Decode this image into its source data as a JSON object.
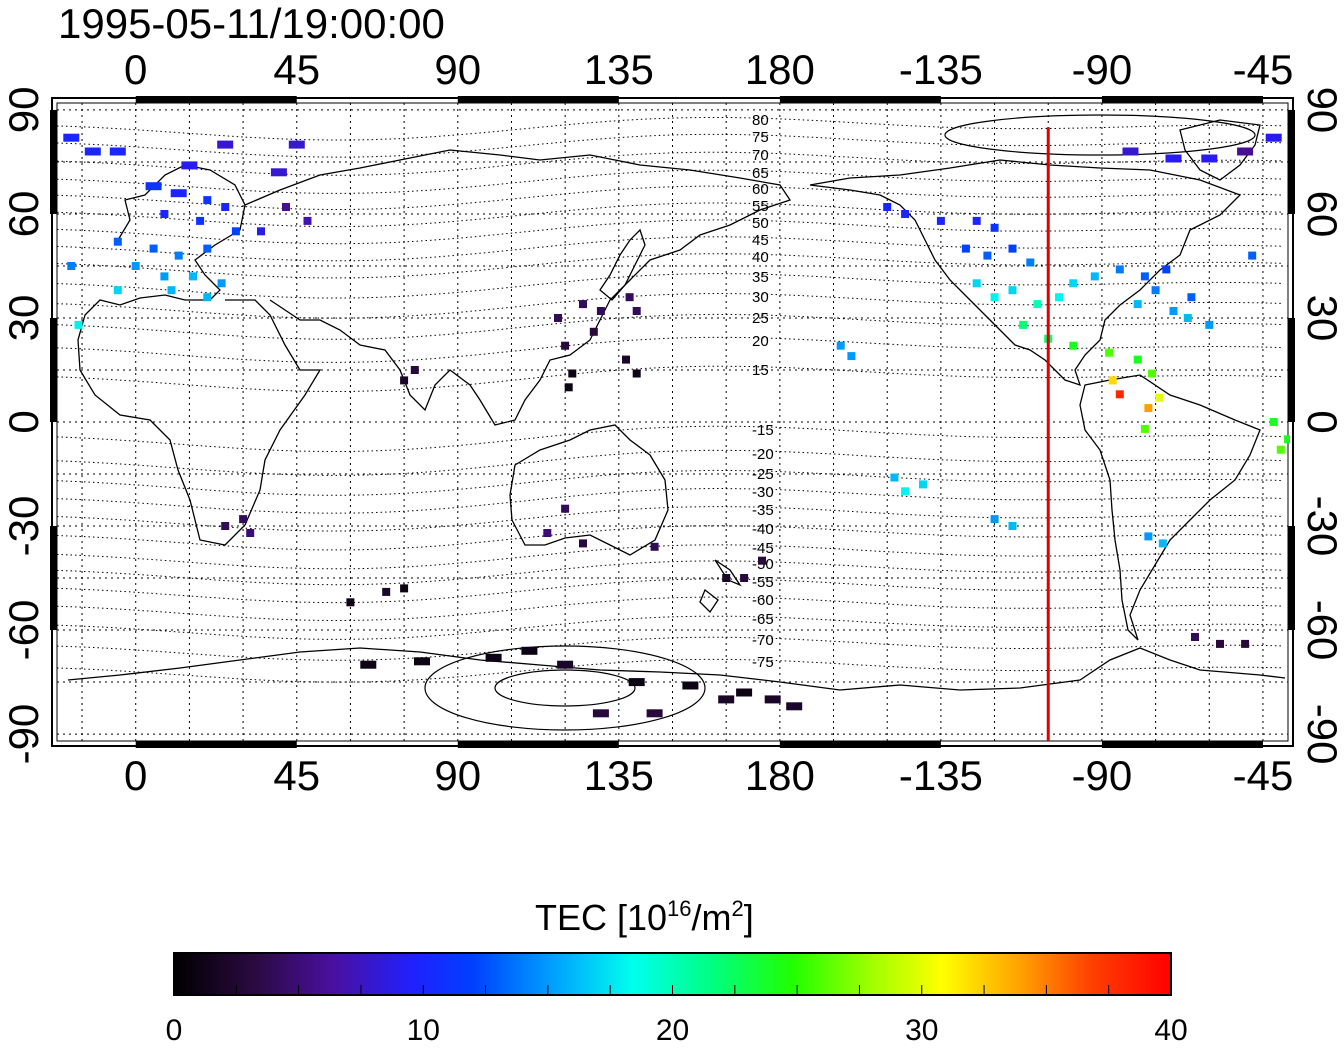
{
  "title": "1995-05-11/19:00:00",
  "map": {
    "lon_ticks": [
      {
        "lon": 0,
        "label": "0"
      },
      {
        "lon": 45,
        "label": "45"
      },
      {
        "lon": 90,
        "label": "90"
      },
      {
        "lon": 135,
        "label": "135"
      },
      {
        "lon": 180,
        "label": "180"
      },
      {
        "lon": 225,
        "label": "-135"
      },
      {
        "lon": 270,
        "label": "-90"
      },
      {
        "lon": 315,
        "label": "-45"
      }
    ],
    "lat_ticks": [
      {
        "lat": 90,
        "label": "90"
      },
      {
        "lat": 60,
        "label": "60"
      },
      {
        "lat": 30,
        "label": "30"
      },
      {
        "lat": 0,
        "label": "0"
      },
      {
        "lat": -30,
        "label": "-30"
      },
      {
        "lat": -60,
        "label": "-60"
      },
      {
        "lat": -90,
        "label": "-90"
      }
    ],
    "lon_range": [
      -22,
      322
    ],
    "lat_range": [
      -92,
      92
    ],
    "grid": true,
    "terminator_lon": 255,
    "terminator_color": "#e00000",
    "magnetic_lat_labels": [
      "80",
      "75",
      "70",
      "65",
      "60",
      "55",
      "50",
      "45",
      "40",
      "35",
      "30",
      "25",
      "20",
      "15",
      "-15",
      "-20",
      "-25",
      "-30",
      "-35",
      "-40",
      "-45",
      "-50",
      "-55",
      "-60",
      "-65",
      "-70",
      "-75"
    ]
  },
  "colorbar": {
    "title_main": "TEC  [10",
    "title_sup": "16",
    "title_mid": "/m",
    "title_sup2": "2",
    "title_end": "]",
    "ticks": [
      "0",
      "10",
      "20",
      "30",
      "40"
    ],
    "min": 0,
    "max": 40
  },
  "chart_data": {
    "type": "scatter",
    "title": "1995-05-11/19:00:00",
    "quantity": "TEC [10^16/m^2]",
    "points": [
      {
        "lon": -12,
        "lat": 78,
        "tec": 10
      },
      {
        "lon": -5,
        "lat": 78,
        "tec": 10
      },
      {
        "lon": 25,
        "lat": 80,
        "tec": 8
      },
      {
        "lon": 15,
        "lat": 74,
        "tec": 9
      },
      {
        "lon": 5,
        "lat": 68,
        "tec": 11
      },
      {
        "lon": 12,
        "lat": 66,
        "tec": 10
      },
      {
        "lon": 20,
        "lat": 64,
        "tec": 11
      },
      {
        "lon": 8,
        "lat": 60,
        "tec": 10
      },
      {
        "lon": 18,
        "lat": 58,
        "tec": 11
      },
      {
        "lon": 25,
        "lat": 62,
        "tec": 10
      },
      {
        "lon": 28,
        "lat": 55,
        "tec": 12
      },
      {
        "lon": -5,
        "lat": 52,
        "tec": 13
      },
      {
        "lon": 5,
        "lat": 50,
        "tec": 13
      },
      {
        "lon": 12,
        "lat": 48,
        "tec": 14
      },
      {
        "lon": 20,
        "lat": 50,
        "tec": 13
      },
      {
        "lon": 0,
        "lat": 45,
        "tec": 15
      },
      {
        "lon": 8,
        "lat": 42,
        "tec": 15
      },
      {
        "lon": 16,
        "lat": 42,
        "tec": 16
      },
      {
        "lon": 24,
        "lat": 40,
        "tec": 15
      },
      {
        "lon": -5,
        "lat": 38,
        "tec": 17
      },
      {
        "lon": 10,
        "lat": 38,
        "tec": 16
      },
      {
        "lon": 20,
        "lat": 36,
        "tec": 16
      },
      {
        "lon": -16,
        "lat": 28,
        "tec": 18
      },
      {
        "lon": -18,
        "lat": 45,
        "tec": 14
      },
      {
        "lon": 45,
        "lat": 80,
        "tec": 8
      },
      {
        "lon": 40,
        "lat": 72,
        "tec": 8
      },
      {
        "lon": 42,
        "lat": 62,
        "tec": 6
      },
      {
        "lon": 48,
        "lat": 58,
        "tec": 7
      },
      {
        "lon": 35,
        "lat": 55,
        "tec": 9
      },
      {
        "lon": 118,
        "lat": 30,
        "tec": 4
      },
      {
        "lon": 125,
        "lat": 34,
        "tec": 4
      },
      {
        "lon": 130,
        "lat": 32,
        "tec": 4
      },
      {
        "lon": 138,
        "lat": 36,
        "tec": 4
      },
      {
        "lon": 140,
        "lat": 32,
        "tec": 4
      },
      {
        "lon": 128,
        "lat": 26,
        "tec": 3
      },
      {
        "lon": 120,
        "lat": 22,
        "tec": 3
      },
      {
        "lon": 122,
        "lat": 14,
        "tec": 1
      },
      {
        "lon": 121,
        "lat": 10,
        "tec": 1
      },
      {
        "lon": 140,
        "lat": 14,
        "tec": 1
      },
      {
        "lon": 137,
        "lat": 18,
        "tec": 2
      },
      {
        "lon": 75,
        "lat": 12,
        "tec": 2
      },
      {
        "lon": 78,
        "lat": 15,
        "tec": 3
      },
      {
        "lon": 30,
        "lat": -28,
        "tec": 4
      },
      {
        "lon": 25,
        "lat": -30,
        "tec": 4
      },
      {
        "lon": 32,
        "lat": -32,
        "tec": 5
      },
      {
        "lon": 115,
        "lat": -32,
        "tec": 5
      },
      {
        "lon": 120,
        "lat": -25,
        "tec": 4
      },
      {
        "lon": 125,
        "lat": -35,
        "tec": 3
      },
      {
        "lon": 145,
        "lat": -36,
        "tec": 4
      },
      {
        "lon": 170,
        "lat": -45,
        "tec": 3
      },
      {
        "lon": 175,
        "lat": -40,
        "tec": 3
      },
      {
        "lon": 165,
        "lat": -45,
        "tec": 2
      },
      {
        "lon": 60,
        "lat": -52,
        "tec": 1
      },
      {
        "lon": 70,
        "lat": -49,
        "tec": 2
      },
      {
        "lon": 75,
        "lat": -48,
        "tec": 1
      },
      {
        "lon": 65,
        "lat": -70,
        "tec": 1
      },
      {
        "lon": 80,
        "lat": -69,
        "tec": 1
      },
      {
        "lon": 100,
        "lat": -68,
        "tec": 1
      },
      {
        "lon": 110,
        "lat": -66,
        "tec": 1
      },
      {
        "lon": 120,
        "lat": -70,
        "tec": 2
      },
      {
        "lon": 140,
        "lat": -75,
        "tec": 1
      },
      {
        "lon": 155,
        "lat": -76,
        "tec": 1
      },
      {
        "lon": 165,
        "lat": -80,
        "tec": 2
      },
      {
        "lon": 130,
        "lat": -84,
        "tec": 3
      },
      {
        "lon": 145,
        "lat": -84,
        "tec": 3
      },
      {
        "lon": 170,
        "lat": -78,
        "tec": 1
      },
      {
        "lon": 178,
        "lat": -80,
        "tec": 2
      },
      {
        "lon": 184,
        "lat": -82,
        "tec": 2
      },
      {
        "lon": 197,
        "lat": 22,
        "tec": 15
      },
      {
        "lon": 200,
        "lat": 19,
        "tec": 15
      },
      {
        "lon": 212,
        "lat": -16,
        "tec": 16
      },
      {
        "lon": 215,
        "lat": -20,
        "tec": 18
      },
      {
        "lon": 220,
        "lat": -18,
        "tec": 17
      },
      {
        "lon": 210,
        "lat": 62,
        "tec": 10
      },
      {
        "lon": 215,
        "lat": 60,
        "tec": 10
      },
      {
        "lon": 225,
        "lat": 58,
        "tec": 10
      },
      {
        "lon": 235,
        "lat": 58,
        "tec": 10
      },
      {
        "lon": 240,
        "lat": 56,
        "tec": 11
      },
      {
        "lon": 232,
        "lat": 50,
        "tec": 12
      },
      {
        "lon": 238,
        "lat": 48,
        "tec": 13
      },
      {
        "lon": 245,
        "lat": 50,
        "tec": 12
      },
      {
        "lon": 250,
        "lat": 46,
        "tec": 14
      },
      {
        "lon": 235,
        "lat": 40,
        "tec": 17
      },
      {
        "lon": 240,
        "lat": 36,
        "tec": 18
      },
      {
        "lon": 245,
        "lat": 38,
        "tec": 17
      },
      {
        "lon": 252,
        "lat": 34,
        "tec": 20
      },
      {
        "lon": 258,
        "lat": 36,
        "tec": 18
      },
      {
        "lon": 262,
        "lat": 40,
        "tec": 17
      },
      {
        "lon": 268,
        "lat": 42,
        "tec": 16
      },
      {
        "lon": 275,
        "lat": 44,
        "tec": 14
      },
      {
        "lon": 282,
        "lat": 42,
        "tec": 13
      },
      {
        "lon": 288,
        "lat": 44,
        "tec": 12
      },
      {
        "lon": 285,
        "lat": 38,
        "tec": 14
      },
      {
        "lon": 280,
        "lat": 34,
        "tec": 16
      },
      {
        "lon": 290,
        "lat": 32,
        "tec": 15
      },
      {
        "lon": 295,
        "lat": 36,
        "tec": 13
      },
      {
        "lon": 248,
        "lat": 28,
        "tec": 22
      },
      {
        "lon": 255,
        "lat": 24,
        "tec": 22
      },
      {
        "lon": 262,
        "lat": 22,
        "tec": 24
      },
      {
        "lon": 272,
        "lat": 20,
        "tec": 26
      },
      {
        "lon": 280,
        "lat": 18,
        "tec": 24
      },
      {
        "lon": 284,
        "lat": 14,
        "tec": 26
      },
      {
        "lon": 273,
        "lat": 12,
        "tec": 32
      },
      {
        "lon": 275,
        "lat": 8,
        "tec": 38
      },
      {
        "lon": 283,
        "lat": 4,
        "tec": 34
      },
      {
        "lon": 286,
        "lat": 7,
        "tec": 30
      },
      {
        "lon": 282,
        "lat": -2,
        "tec": 26
      },
      {
        "lon": 294,
        "lat": 30,
        "tec": 16
      },
      {
        "lon": 300,
        "lat": 28,
        "tec": 15
      },
      {
        "lon": 240,
        "lat": -28,
        "tec": 15
      },
      {
        "lon": 245,
        "lat": -30,
        "tec": 16
      },
      {
        "lon": 283,
        "lat": -33,
        "tec": 15
      },
      {
        "lon": 287,
        "lat": -35,
        "tec": 16
      },
      {
        "lon": 318,
        "lat": 0,
        "tec": 24
      },
      {
        "lon": 322,
        "lat": -5,
        "tec": 24
      },
      {
        "lon": 320,
        "lat": -8,
        "tec": 26
      },
      {
        "lon": 278,
        "lat": 78,
        "tec": 8
      },
      {
        "lon": 290,
        "lat": 76,
        "tec": 9
      },
      {
        "lon": 300,
        "lat": 76,
        "tec": 9
      },
      {
        "lon": 310,
        "lat": 78,
        "tec": 6
      },
      {
        "lon": 318,
        "lat": 82,
        "tec": 9
      },
      {
        "lon": 296,
        "lat": -62,
        "tec": 4
      },
      {
        "lon": 303,
        "lat": -64,
        "tec": 3
      },
      {
        "lon": 310,
        "lat": -64,
        "tec": 3
      },
      {
        "lon": 342,
        "lat": 82,
        "tec": 10
      },
      {
        "lon": 312,
        "lat": 48,
        "tec": 13
      }
    ]
  }
}
